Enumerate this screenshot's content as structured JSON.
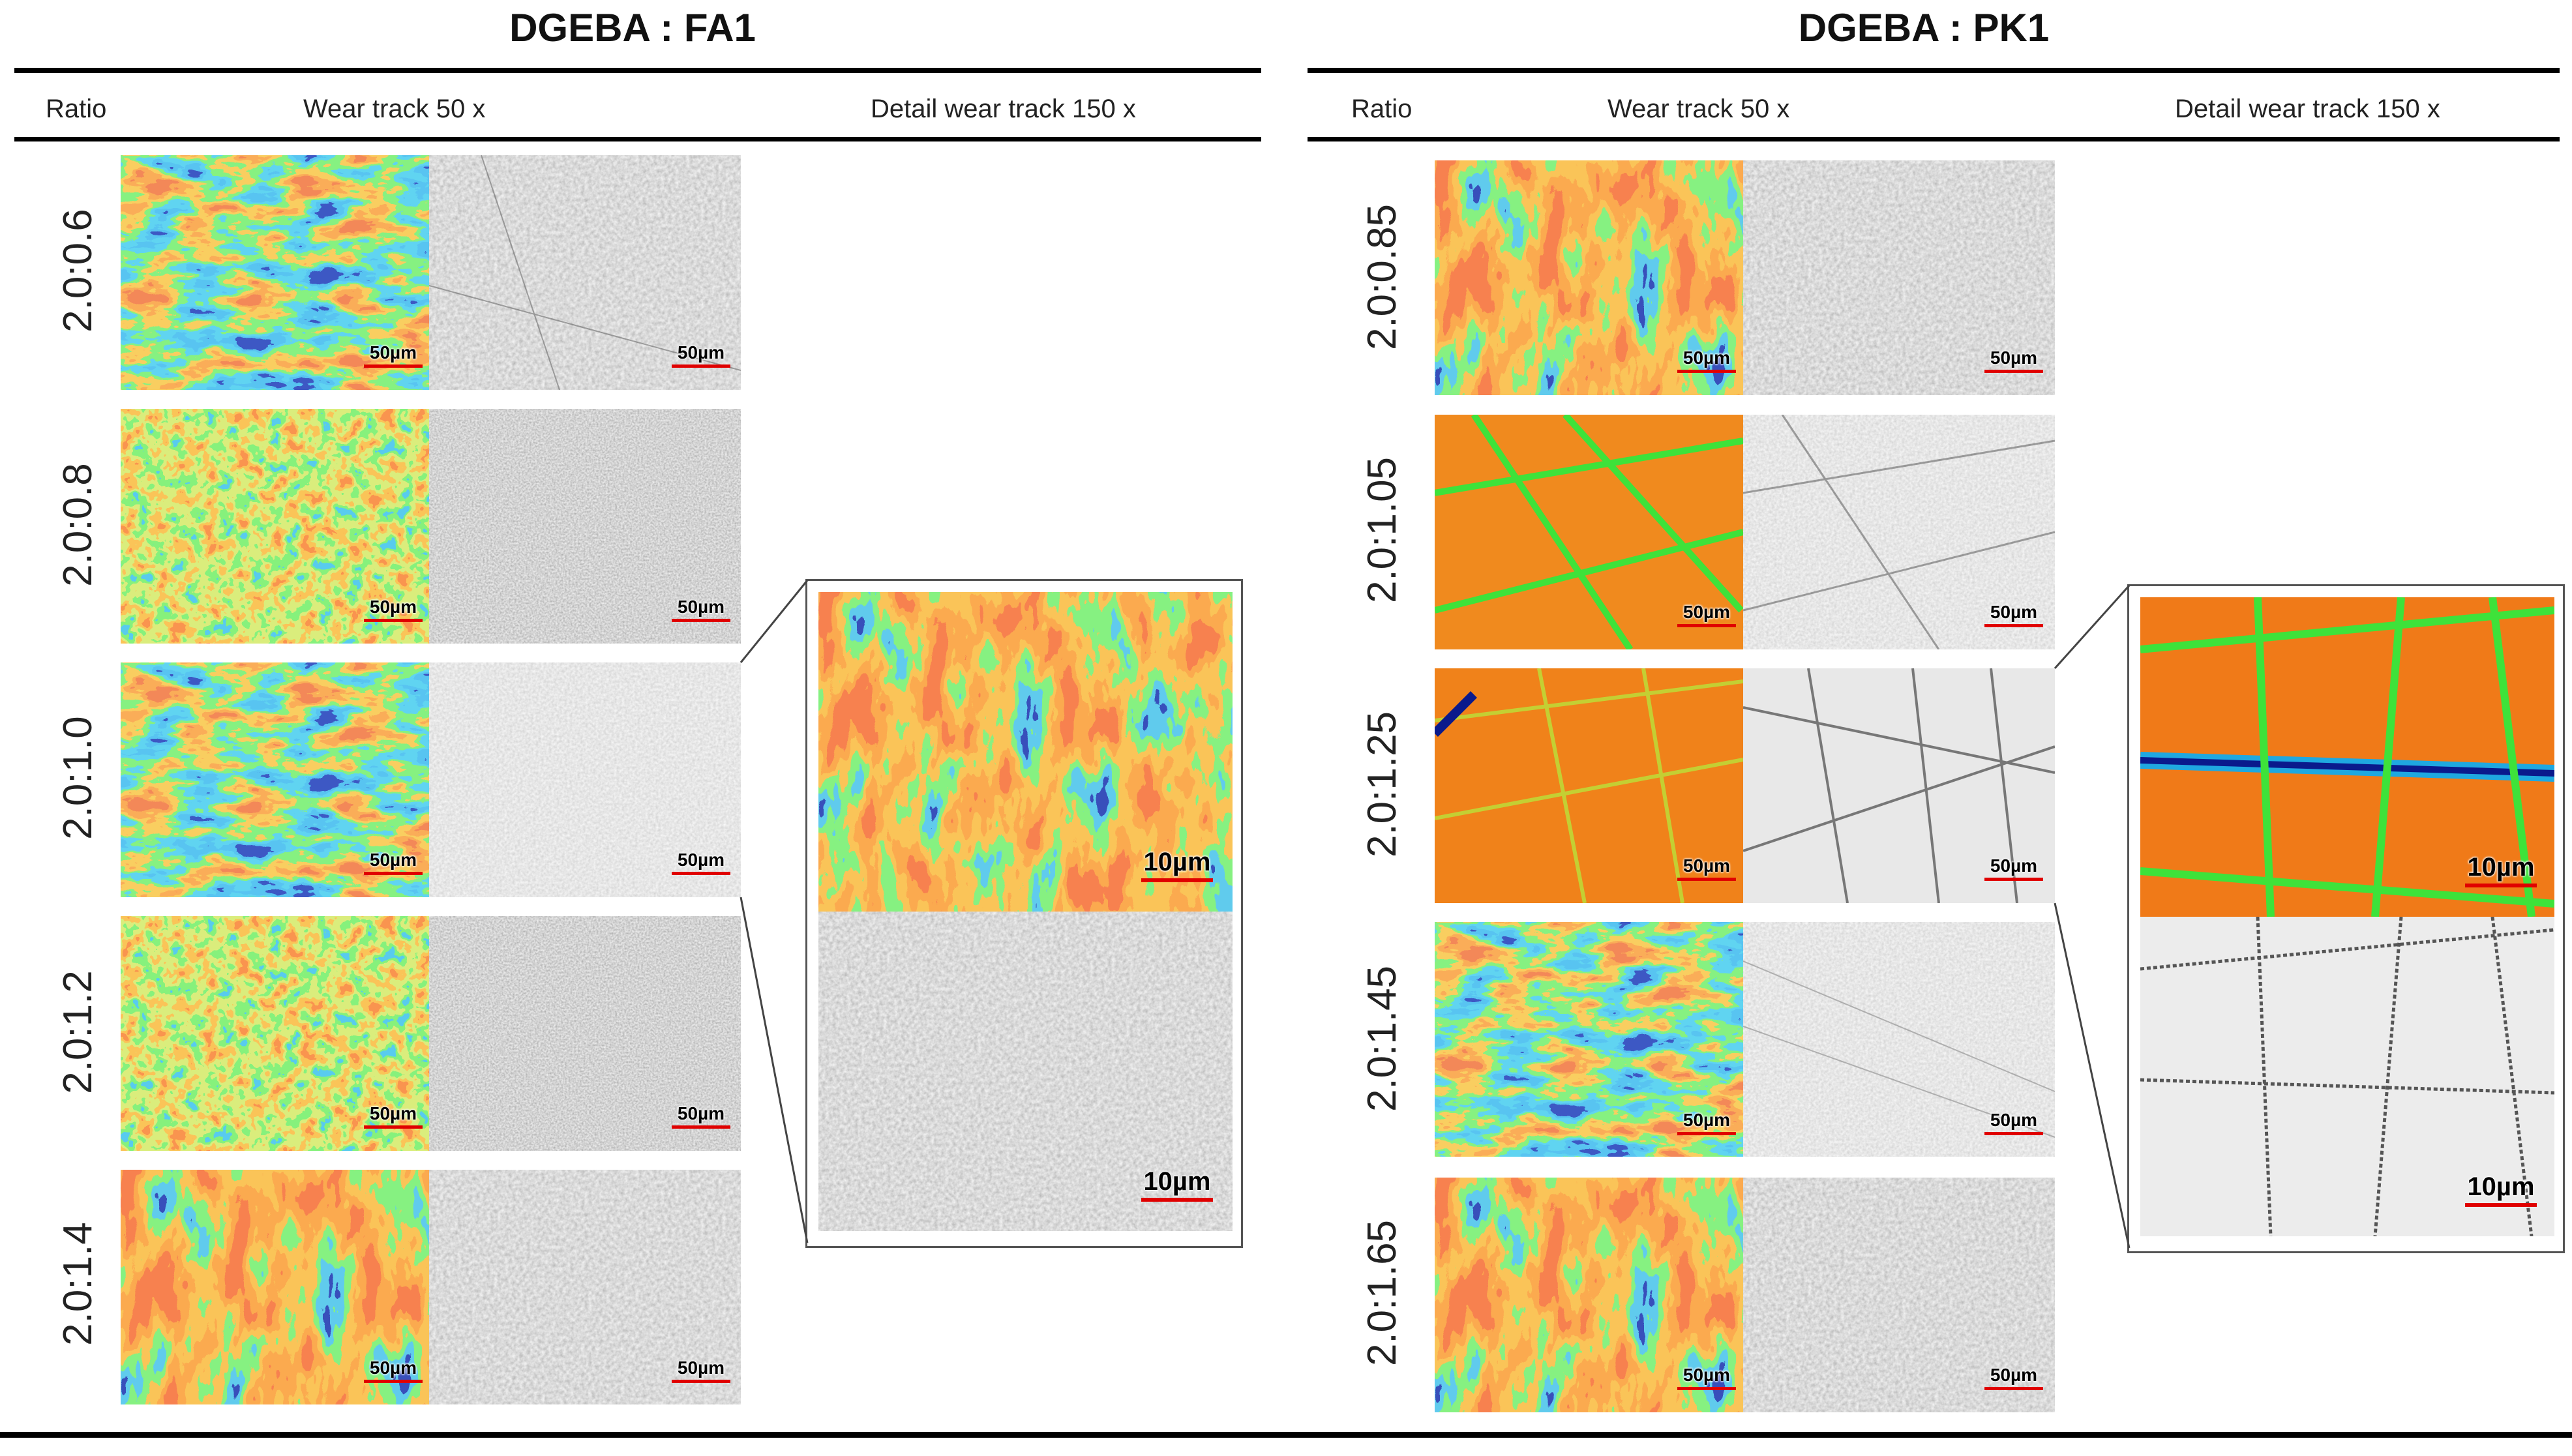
{
  "panels": [
    {
      "title": "DGEBA : FA1",
      "columns": {
        "ratio": "Ratio",
        "wear": "Wear track 50 x",
        "detail": "Detail wear track 150 x"
      },
      "rows": [
        {
          "ratio": "2.0:0.6",
          "scale": "50µm"
        },
        {
          "ratio": "2.0:0.8",
          "scale": "50µm"
        },
        {
          "ratio": "2.0:1.0",
          "scale": "50µm"
        },
        {
          "ratio": "2.0:1.2",
          "scale": "50µm"
        },
        {
          "ratio": "2.0:1.4",
          "scale": "50µm"
        }
      ],
      "detail_scale": "10µm"
    },
    {
      "title": "DGEBA : PK1",
      "columns": {
        "ratio": "Ratio",
        "wear": "Wear track 50 x",
        "detail": "Detail wear track 150 x"
      },
      "rows": [
        {
          "ratio": "2.0:0.85",
          "scale": "50µm"
        },
        {
          "ratio": "2.0:1.05",
          "scale": "50µm"
        },
        {
          "ratio": "2.0:1.25",
          "scale": "50µm"
        },
        {
          "ratio": "2.0:1.45",
          "scale": "50µm"
        },
        {
          "ratio": "2.0:1.65",
          "scale": "50µm"
        }
      ],
      "detail_scale": "10µm"
    }
  ],
  "colors": {
    "height_low": "#0a1a8c",
    "height_mid_low": "#1fa8e0",
    "height_mid": "#3ee23a",
    "height_high": "#f59a1e",
    "height_peak": "#e23a1a",
    "scale_bar": "#e00000"
  }
}
